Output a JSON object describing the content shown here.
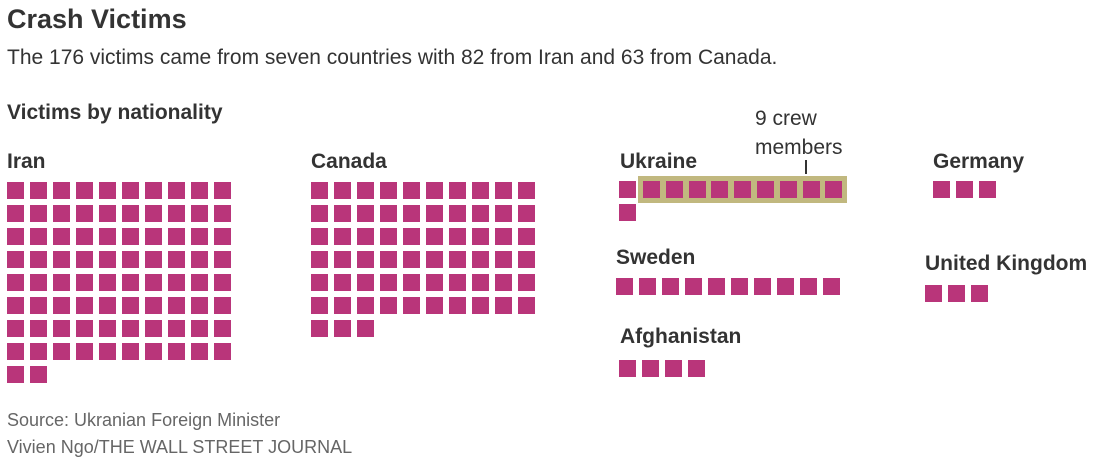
{
  "title": "Crash Victims",
  "subtitle": "The 176 victims came from seven countries with 82 from Iran and 63 from Canada.",
  "section_label": "Victims by nationality",
  "crew_annotation": {
    "line1": "9 crew",
    "line2": "members"
  },
  "colors": {
    "victim": "#b9357a",
    "crew_highlight": "#c1b87f",
    "text": "#333333",
    "muted": "#666666"
  },
  "source": "Source: Ukranian Foreign Minister",
  "credit": "Vivien Ngo/THE WALL STREET JOURNAL",
  "chart_data": {
    "type": "waffle",
    "unit": "victims",
    "total": 176,
    "series": [
      {
        "name": "Iran",
        "value": 82
      },
      {
        "name": "Canada",
        "value": 63
      },
      {
        "name": "Ukraine",
        "value": 11,
        "crew": 9
      },
      {
        "name": "Sweden",
        "value": 10
      },
      {
        "name": "Afghanistan",
        "value": 4
      },
      {
        "name": "Germany",
        "value": 3
      },
      {
        "name": "United Kingdom",
        "value": 3
      }
    ]
  }
}
